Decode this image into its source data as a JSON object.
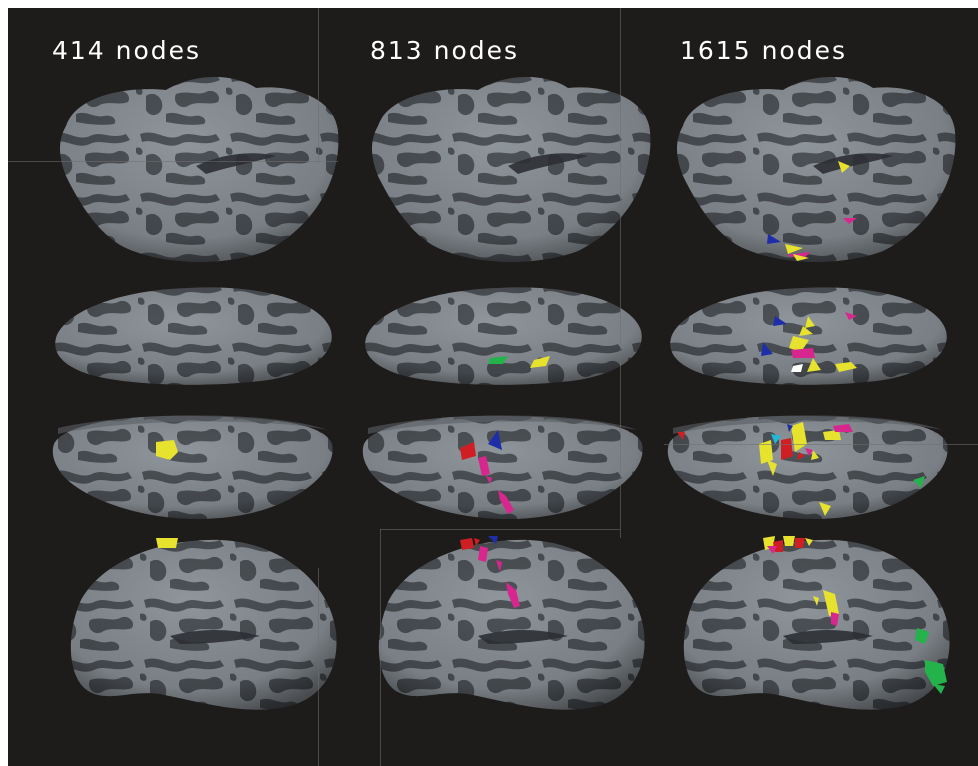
{
  "figure": {
    "background": "#1e1b1b",
    "colors": {
      "surface_light": "#8e959b",
      "surface_dark": "#4d5257",
      "yellow": "#e6e22e",
      "magenta": "#d8268f",
      "blue": "#1e2ea8",
      "red": "#d01f24",
      "green": "#23b34a",
      "cyan": "#21b8d6",
      "white": "#ffffff"
    },
    "columns": [
      {
        "label": "414 nodes"
      },
      {
        "label": "813 nodes"
      },
      {
        "label": "1615 nodes"
      }
    ],
    "rows": [
      {
        "view": "lateral-inflated-top"
      },
      {
        "view": "ventral-inflated"
      },
      {
        "view": "dorsal-inflated"
      },
      {
        "view": "lateral-inflated-bottom"
      }
    ],
    "highlight_counts": [
      [
        0,
        0,
        6
      ],
      [
        0,
        2,
        10
      ],
      [
        1,
        5,
        14
      ],
      [
        1,
        6,
        12
      ]
    ]
  }
}
